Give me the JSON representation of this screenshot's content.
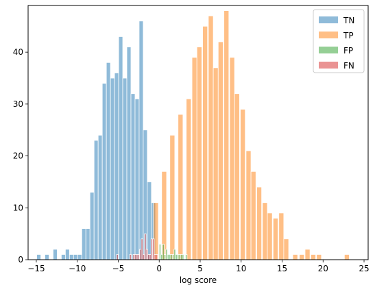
{
  "chart_data": {
    "type": "bar",
    "subtype": "histogram",
    "title": "",
    "xlabel": "log score",
    "ylabel": "",
    "xlim": [
      -16,
      25.5
    ],
    "ylim": [
      0,
      49
    ],
    "xticks": [
      -15,
      -10,
      -5,
      0,
      5,
      10,
      15,
      20,
      25
    ],
    "yticks": [
      0,
      10,
      20,
      30,
      40
    ],
    "legend_position": "top-right",
    "grid": false,
    "series": [
      {
        "name": "TN",
        "color": "#1f77b4",
        "alpha": 0.5,
        "bin_width": 0.5,
        "x": [
          -14.7,
          -13.7,
          -12.7,
          -11.7,
          -11.2,
          -10.7,
          -10.2,
          -9.7,
          -9.2,
          -8.7,
          -8.2,
          -7.7,
          -7.2,
          -6.7,
          -6.2,
          -5.7,
          -5.2,
          -4.7,
          -4.2,
          -3.7,
          -3.2,
          -2.7,
          -2.2,
          -1.7,
          -1.2,
          -0.7
        ],
        "values": [
          1,
          1,
          2,
          1,
          2,
          1,
          1,
          1,
          6,
          6,
          13,
          23,
          24,
          34,
          38,
          35,
          36,
          43,
          35,
          41,
          32,
          31,
          46,
          25,
          15,
          11
        ]
      },
      {
        "name": "TP",
        "color": "#ff7f0e",
        "alpha": 0.5,
        "bin_width": 0.6,
        "x": [
          -0.4,
          0.6,
          1.6,
          2.6,
          3.6,
          4.3,
          4.9,
          5.6,
          6.3,
          6.9,
          7.5,
          8.2,
          8.9,
          9.5,
          10.2,
          10.9,
          11.5,
          12.2,
          12.9,
          13.5,
          14.2,
          14.9,
          15.5,
          16.6,
          17.4,
          18.1,
          18.8,
          19.5,
          22.9
        ],
        "values": [
          11,
          17,
          24,
          28,
          31,
          39,
          41,
          45,
          47,
          37,
          42,
          48,
          39,
          32,
          29,
          21,
          17,
          14,
          11,
          9,
          8,
          9,
          4,
          1,
          1,
          2,
          1,
          1,
          1
        ]
      },
      {
        "name": "FP",
        "color": "#2ca02c",
        "alpha": 0.5,
        "bin_width": 0.2,
        "x": [
          0.1,
          0.3,
          0.5,
          0.7,
          0.9,
          1.1,
          1.3,
          1.5,
          1.7,
          1.9,
          2.1,
          2.3,
          2.5,
          2.7,
          2.9,
          3.3
        ],
        "values": [
          3,
          1,
          3,
          1,
          2,
          1,
          1,
          1,
          1,
          2,
          1,
          1,
          1,
          1,
          1,
          1
        ]
      },
      {
        "name": "FN",
        "color": "#d62728",
        "alpha": 0.5,
        "bin_width": 0.2,
        "x": [
          -5.1,
          -3.5,
          -3.1,
          -2.9,
          -2.7,
          -2.5,
          -2.3,
          -2.1,
          -1.9,
          -1.7,
          -1.5,
          -1.3,
          -1.1,
          -0.9,
          -0.7,
          -0.5,
          -0.3
        ],
        "values": [
          1,
          1,
          1,
          1,
          1,
          1,
          2,
          4,
          1,
          5,
          2,
          1,
          1,
          4,
          4,
          1,
          1
        ]
      }
    ]
  }
}
